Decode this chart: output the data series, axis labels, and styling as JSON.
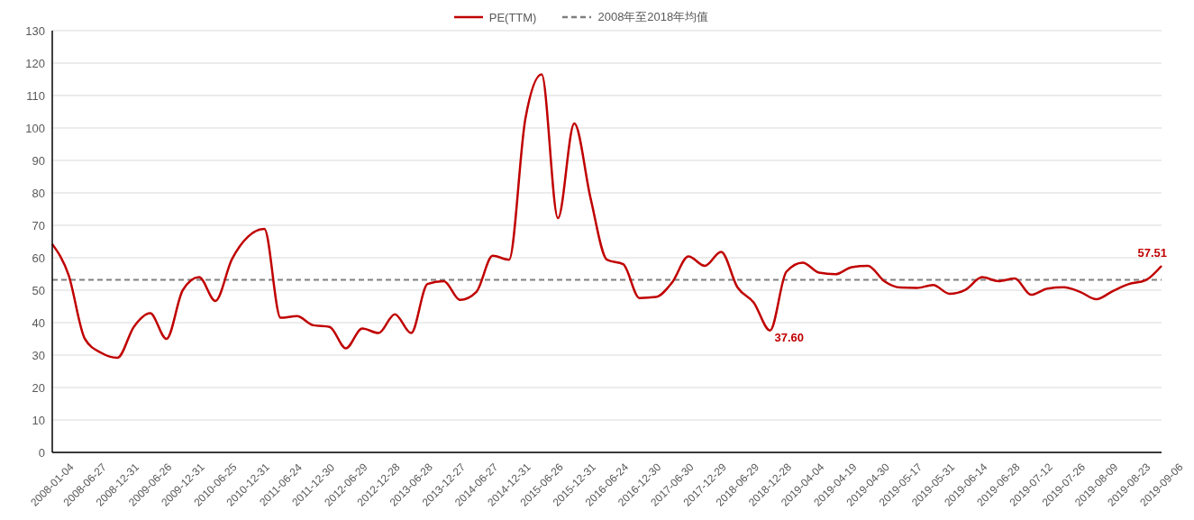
{
  "chart_data": {
    "type": "line",
    "categories": [
      "2008-01-04",
      null,
      "2008-06-27",
      null,
      "2008-12-31",
      null,
      "2009-06-26",
      null,
      "2009-12-31",
      null,
      "2010-06-25",
      null,
      "2010-12-31",
      null,
      "2011-06-24",
      null,
      "2011-12-30",
      null,
      "2012-06-29",
      null,
      "2012-12-28",
      null,
      "2013-06-28",
      null,
      "2013-12-27",
      null,
      "2014-06-27",
      null,
      "2014-12-31",
      null,
      "2015-06-26",
      null,
      "2015-12-31",
      null,
      "2016-06-24",
      null,
      "2016-12-30",
      null,
      "2017-06-30",
      null,
      "2017-12-29",
      null,
      "2018-06-29",
      null,
      "2018-12-28",
      null,
      "2019-04-04",
      null,
      "2019-04-19",
      null,
      "2019-04-30",
      null,
      "2019-05-17",
      null,
      "2019-05-31",
      null,
      "2019-06-14",
      null,
      "2019-06-28",
      null,
      "2019-07-12",
      null,
      "2019-07-26",
      null,
      "2019-08-09",
      null,
      "2019-08-23",
      null,
      "2019-09-06"
    ],
    "series": [
      {
        "name": "PE(TTM)",
        "color": "#c00000",
        "values": [
          64.2,
          54.7,
          35,
          30.7,
          29.2,
          38.7,
          42.9,
          35,
          50,
          54,
          46.7,
          59.4,
          66.5,
          68.9,
          41.5,
          42,
          39.2,
          38.7,
          32.1,
          38.2,
          36.8,
          42.6,
          36.8,
          51.9,
          52.8,
          47,
          49.5,
          60.6,
          59.4,
          102.8,
          116.5,
          72.2,
          101.4,
          78.3,
          59.4,
          58,
          47.6,
          47.9,
          52.4,
          60.4,
          57.5,
          61.8,
          50.9,
          46.2,
          37.6,
          55.7,
          58.5,
          55.4,
          54.9,
          57.1,
          57.5,
          52.8,
          50.8,
          50.7,
          51.6,
          48.9,
          50.2,
          54,
          52.8,
          53.6,
          48.6,
          50.5,
          50.9,
          49.5,
          47.2,
          49.7,
          51.9,
          53,
          57.51
        ],
        "value_labels": [
          null,
          null,
          null,
          null,
          null,
          null,
          null,
          null,
          null,
          null,
          null,
          null,
          null,
          null,
          null,
          null,
          null,
          null,
          null,
          null,
          null,
          null,
          null,
          null,
          null,
          null,
          null,
          null,
          null,
          null,
          null,
          null,
          null,
          null,
          null,
          null,
          null,
          null,
          null,
          null,
          null,
          null,
          null,
          null,
          "37.60",
          null,
          null,
          null,
          null,
          null,
          null,
          null,
          null,
          null,
          null,
          null,
          null,
          null,
          null,
          null,
          null,
          null,
          null,
          null,
          null,
          null,
          null,
          null,
          "57.51"
        ]
      }
    ],
    "ref_lines": [
      {
        "axis": "y",
        "value": 53.2,
        "label": "2008年至2018年均值",
        "color": "#7f7f7f",
        "line_style": "dashed"
      }
    ],
    "ylim": [
      0,
      130
    ],
    "yticks": [
      0,
      10,
      20,
      30,
      40,
      50,
      60,
      70,
      80,
      90,
      100,
      110,
      120,
      130
    ],
    "grid": "y",
    "legend": "top",
    "line_style": "solid",
    "marker": "none"
  }
}
